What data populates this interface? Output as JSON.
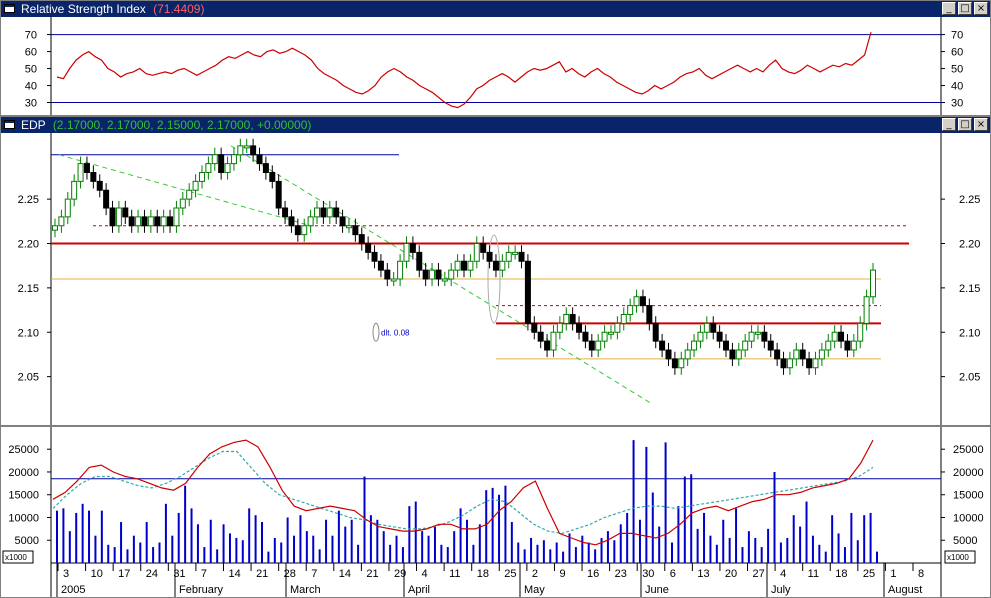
{
  "rsi_panel": {
    "title": "Relative Strength Index",
    "value_text": "(71.4409)",
    "buttons": {
      "minimize": "_",
      "restore": "□",
      "close": "×"
    }
  },
  "price_panel": {
    "title": "EDP",
    "values_text": "(2.17000, 2.17000, 2.15000, 2.17000, +0.00000)",
    "buttons": {
      "minimize": "_",
      "restore": "□",
      "close": "×"
    }
  },
  "volume_panel": {
    "multiplier_left": "x1000",
    "multiplier_right": "x1000"
  },
  "colors": {
    "rsi_line": "#cc0000",
    "up_candle": "#008000",
    "down_candle": "#000000",
    "support_resistance": "#cc0000",
    "range_line": "#e8b040",
    "trend_line": "#33cc33",
    "level_line": "#0000a0",
    "volume_bar": "#0000cc",
    "ma_fast": "#cc0000",
    "ma_slow": "#33aaaa"
  },
  "chart_data": [
    {
      "type": "line",
      "title": "Relative Strength Index",
      "yticks": [
        30,
        40,
        50,
        60,
        70
      ],
      "ylim": [
        25,
        78
      ],
      "levels": [
        30,
        70
      ],
      "series": [
        {
          "values": [
            45,
            44,
            50,
            55,
            58,
            60,
            57,
            55,
            50,
            48,
            45,
            47,
            48,
            50,
            47,
            46,
            47,
            48,
            47,
            49,
            50,
            48,
            46,
            48,
            50,
            52,
            55,
            57,
            56,
            58,
            60,
            58,
            57,
            60,
            61,
            59,
            60,
            62,
            60,
            58,
            55,
            50,
            47,
            45,
            43,
            40,
            38,
            36,
            35,
            37,
            40,
            45,
            48,
            50,
            48,
            45,
            43,
            40,
            38,
            36,
            33,
            30,
            28,
            27,
            29,
            33,
            38,
            40,
            43,
            45,
            47,
            45,
            42,
            45,
            48,
            50,
            49,
            50,
            52,
            54,
            48,
            50,
            47,
            45,
            48,
            50,
            47,
            45,
            42,
            40,
            38,
            36,
            35,
            37,
            40,
            38,
            40,
            42,
            45,
            47,
            48,
            50,
            46,
            44,
            46,
            48,
            50,
            52,
            50,
            48,
            50,
            48,
            52,
            55,
            50,
            48,
            47,
            49,
            52,
            50,
            48,
            50,
            52,
            51,
            53,
            52,
            55,
            58,
            71.4
          ]
        }
      ]
    },
    {
      "type": "candlestick",
      "title": "EDP",
      "yticks": [
        2.05,
        2.1,
        2.15,
        2.2,
        2.25
      ],
      "ylim": [
        2.0,
        2.32
      ],
      "annotation": "dlt. 0.08",
      "horizontal_lines": [
        {
          "y": 2.2,
          "kind": "support_resistance"
        },
        {
          "y": 2.11,
          "kind": "support_resistance"
        },
        {
          "y": 2.22,
          "kind": "dashed"
        },
        {
          "y": 2.13,
          "kind": "dashed"
        },
        {
          "y": 2.16,
          "kind": "range"
        },
        {
          "y": 2.07,
          "kind": "range"
        },
        {
          "y": 2.3,
          "kind": "level"
        }
      ],
      "closes": [
        2.22,
        2.23,
        2.25,
        2.27,
        2.29,
        2.28,
        2.27,
        2.26,
        2.24,
        2.22,
        2.24,
        2.23,
        2.22,
        2.23,
        2.22,
        2.23,
        2.22,
        2.23,
        2.22,
        2.24,
        2.25,
        2.26,
        2.27,
        2.28,
        2.29,
        2.3,
        2.28,
        2.29,
        2.3,
        2.31,
        2.31,
        2.3,
        2.29,
        2.28,
        2.27,
        2.24,
        2.23,
        2.22,
        2.21,
        2.22,
        2.23,
        2.24,
        2.23,
        2.24,
        2.23,
        2.22,
        2.22,
        2.21,
        2.2,
        2.19,
        2.18,
        2.17,
        2.16,
        2.16,
        2.18,
        2.2,
        2.19,
        2.17,
        2.16,
        2.17,
        2.16,
        2.16,
        2.17,
        2.18,
        2.17,
        2.18,
        2.2,
        2.19,
        2.18,
        2.17,
        2.18,
        2.19,
        2.19,
        2.18,
        2.11,
        2.1,
        2.09,
        2.08,
        2.1,
        2.11,
        2.12,
        2.11,
        2.1,
        2.09,
        2.08,
        2.09,
        2.1,
        2.1,
        2.11,
        2.12,
        2.13,
        2.14,
        2.13,
        2.11,
        2.09,
        2.08,
        2.07,
        2.06,
        2.07,
        2.08,
        2.09,
        2.1,
        2.11,
        2.1,
        2.09,
        2.08,
        2.07,
        2.08,
        2.09,
        2.1,
        2.1,
        2.09,
        2.08,
        2.07,
        2.06,
        2.07,
        2.08,
        2.07,
        2.06,
        2.07,
        2.08,
        2.09,
        2.1,
        2.09,
        2.08,
        2.09,
        2.11,
        2.14,
        2.17
      ]
    },
    {
      "type": "bar",
      "title": "",
      "yticks": [
        5000,
        10000,
        15000,
        20000,
        25000
      ],
      "ylim": [
        0,
        29000
      ],
      "level": 18500,
      "xticks": [
        "3",
        "10",
        "17",
        "24",
        "31",
        "7",
        "14",
        "21",
        "28",
        "7",
        "14",
        "21",
        "29",
        "4",
        "11",
        "18",
        "25",
        "2",
        "9",
        "16",
        "23",
        "30",
        "6",
        "13",
        "20",
        "27",
        "4",
        "11",
        "18",
        "25",
        "1",
        "8"
      ],
      "months": [
        "2005",
        "February",
        "March",
        "April",
        "May",
        "June",
        "July",
        "August"
      ],
      "volume": [
        11500,
        12000,
        7000,
        11000,
        13000,
        11500,
        6000,
        11500,
        4000,
        3500,
        9000,
        3000,
        6000,
        4500,
        9000,
        3500,
        4500,
        13000,
        6000,
        11000,
        17000,
        12000,
        8500,
        3500,
        9500,
        3000,
        8500,
        6500,
        5500,
        5000,
        12000,
        10500,
        9000,
        2500,
        5500,
        4500,
        10000,
        6000,
        10500,
        7000,
        6000,
        3000,
        9500,
        6000,
        11500,
        8000,
        9500,
        4000,
        19000,
        10500,
        9500,
        7000,
        4000,
        6000,
        3500,
        12500,
        13500,
        7000,
        6000,
        8000,
        4000,
        3500,
        7000,
        12000,
        9500,
        4000,
        8500,
        16000,
        16500,
        15000,
        17000,
        9000,
        4500,
        3000,
        5500,
        4000,
        5000,
        3000,
        4500,
        2500,
        6500,
        3500,
        6000,
        4500,
        3000,
        5500,
        7000,
        5000,
        8500,
        11000,
        27000,
        9500,
        25500,
        15500,
        8000,
        26500,
        4500,
        12500,
        19000,
        19500,
        7500,
        11000,
        6000,
        4000,
        9500,
        5500,
        12000,
        3500,
        7000,
        5500,
        3500,
        7500,
        20000,
        4500,
        5500,
        10500,
        8000,
        13500,
        6000,
        4000,
        2500,
        10500,
        6500,
        3500,
        11000,
        5000,
        10500,
        11000,
        2500
      ],
      "ma_fast": [
        14000,
        15500,
        18000,
        21000,
        21500,
        20000,
        19000,
        18500,
        17500,
        16500,
        16000,
        17500,
        21000,
        24000,
        25500,
        26500,
        27000,
        25500,
        21000,
        16000,
        12500,
        11500,
        12000,
        12500,
        12000,
        11500,
        9500,
        8000,
        7500,
        7000,
        7000,
        7500,
        8500,
        8500,
        7500,
        7500,
        8500,
        11500,
        13500,
        16500,
        18000,
        12000,
        6500,
        5500,
        4500,
        4000,
        5000,
        6500,
        6500,
        6000,
        5500,
        6500,
        8500,
        11000,
        12000,
        12500,
        11500,
        12500,
        13500,
        14000,
        15000,
        15000,
        15500,
        16500,
        17000,
        17500,
        18500,
        22000,
        27000
      ],
      "ma_slow": [
        12000,
        15000,
        17500,
        19000,
        19000,
        18000,
        17000,
        16500,
        17500,
        19000,
        21000,
        23000,
        24500,
        24500,
        21000,
        17500,
        15000,
        14000,
        13000,
        12000,
        11000,
        10000,
        9500,
        8500,
        8000,
        7500,
        7500,
        8000,
        9000,
        10500,
        12500,
        14000,
        13500,
        11000,
        8500,
        7000,
        6500,
        7500,
        8500,
        10000,
        11000,
        12000,
        12500,
        12500,
        12000,
        12500,
        13000,
        13500,
        14000,
        14500,
        15000,
        15500,
        16000,
        16500,
        17000,
        17500,
        18000,
        19000,
        21000
      ]
    }
  ]
}
